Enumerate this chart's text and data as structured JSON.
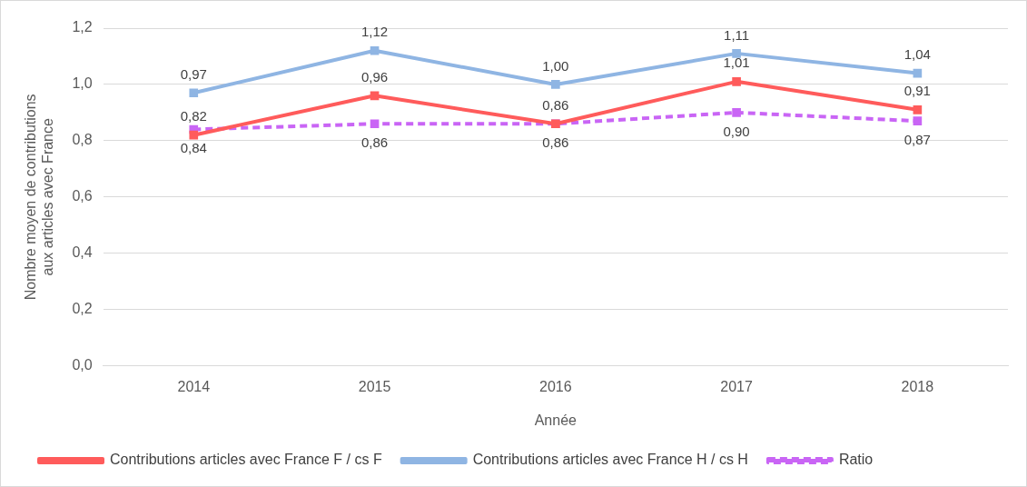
{
  "chart_data": {
    "type": "line",
    "xlabel": "Année",
    "ylabel": "Nombre moyen de contributions aux articles avec France",
    "categories": [
      "2014",
      "2015",
      "2016",
      "2017",
      "2018"
    ],
    "series": [
      {
        "name": "Contributions articles avec France F / cs F",
        "color": "#ff5b5b",
        "values": [
          0.82,
          0.96,
          0.86,
          1.01,
          0.91
        ],
        "value_labels": [
          "0,82",
          "0,96",
          "0,86",
          "1,01",
          "0,91"
        ]
      },
      {
        "name": "Contributions articles avec France H / cs H",
        "color": "#8fb5e3",
        "values": [
          0.97,
          1.12,
          1.0,
          1.11,
          1.04
        ],
        "value_labels": [
          "0,97",
          "1,12",
          "1,00",
          "1,11",
          "1,04"
        ]
      },
      {
        "name": "Ratio",
        "color": "#c965f5",
        "values": [
          0.84,
          0.86,
          0.86,
          0.9,
          0.87
        ],
        "value_labels": [
          "0,84",
          "0,86",
          "0,86",
          "0,90",
          "0,87"
        ],
        "line_style": "dashed"
      }
    ],
    "ylim": [
      0,
      1.2
    ],
    "yticks": [
      {
        "value": 0,
        "label": "0,0"
      },
      {
        "value": 0.2,
        "label": "0,2"
      },
      {
        "value": 0.4,
        "label": "0,4"
      },
      {
        "value": 0.6,
        "label": "0,6"
      },
      {
        "value": 0.8,
        "label": "0,8"
      },
      {
        "value": 1.0,
        "label": "1,0"
      },
      {
        "value": 1.2,
        "label": "1,2"
      }
    ],
    "grid": "y",
    "legend": "bottom",
    "marker": "square"
  }
}
